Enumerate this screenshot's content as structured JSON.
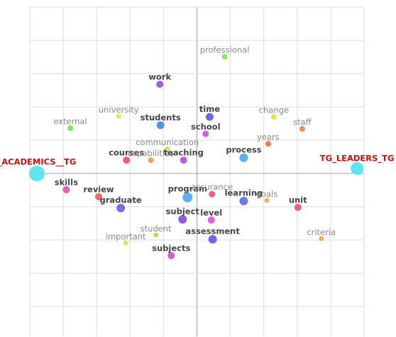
{
  "chart_data": {
    "type": "scatter",
    "xlim": [
      -5,
      5
    ],
    "ylim": [
      -4.9,
      5
    ],
    "xticks": [
      -5,
      -4,
      -3,
      -2,
      -1,
      0,
      1,
      2,
      3,
      4,
      5
    ],
    "yticks": [
      -4,
      -3,
      -2,
      -1,
      0,
      1,
      2,
      3,
      4,
      5
    ],
    "grid": true,
    "points": [
      {
        "label": "professional",
        "x": 0.83,
        "y": 3.51,
        "color": "#8ee85a",
        "size": 4,
        "label_color": "#888888"
      },
      {
        "label": "work",
        "x": -1.11,
        "y": 2.68,
        "color": "#a25be6",
        "size": 5,
        "label_color": "#444444"
      },
      {
        "label": "university",
        "x": -2.34,
        "y": 1.72,
        "color": "#e6e85a",
        "size": 3.5,
        "label_color": "#888888"
      },
      {
        "label": "external",
        "x": -3.79,
        "y": 1.36,
        "color": "#7ae85a",
        "size": 4,
        "label_color": "#888888"
      },
      {
        "label": "students",
        "x": -1.09,
        "y": 1.45,
        "color": "#5b8ee6",
        "size": 5.5,
        "label_color": "#444444"
      },
      {
        "label": "time",
        "x": 0.38,
        "y": 1.7,
        "color": "#6a6ae6",
        "size": 5.5,
        "label_color": "#444444"
      },
      {
        "label": "school",
        "x": 0.26,
        "y": 1.19,
        "color": "#d85be6",
        "size": 4.5,
        "label_color": "#444444"
      },
      {
        "label": "change",
        "x": 2.3,
        "y": 1.7,
        "color": "#e6e05a",
        "size": 4,
        "label_color": "#888888"
      },
      {
        "label": "staff",
        "x": 3.15,
        "y": 1.34,
        "color": "#f08a5a",
        "size": 4,
        "label_color": "#888888"
      },
      {
        "label": "years",
        "x": 2.13,
        "y": 0.89,
        "color": "#f07a5a",
        "size": 4,
        "label_color": "#888888"
      },
      {
        "label": "communication",
        "x": -0.89,
        "y": 0.74,
        "color": "#c8e85a",
        "size": 3.5,
        "label_color": "#888888"
      },
      {
        "label": "process",
        "x": 1.4,
        "y": 0.47,
        "color": "#5bb0f0",
        "size": 6,
        "label_color": "#444444"
      },
      {
        "label": "courses",
        "x": -2.11,
        "y": 0.4,
        "color": "#f05a7a",
        "size": 5,
        "label_color": "#444444"
      },
      {
        "label": "capabilities",
        "x": -1.38,
        "y": 0.4,
        "color": "#f0a05a",
        "size": 4,
        "label_color": "#888888"
      },
      {
        "label": "teaching",
        "x": -0.4,
        "y": 0.4,
        "color": "#c05be6",
        "size": 5,
        "label_color": "#444444"
      },
      {
        "label": "_ACADEMICS__TG",
        "x": -4.79,
        "y": 0,
        "color": "#5ee6f0",
        "size": 11,
        "label_color": "#cc1111"
      },
      {
        "label": "TG_LEADERS_TG",
        "x": 4.79,
        "y": 0.15,
        "color": "#5ee6f0",
        "size": 9,
        "label_color": "#cc1111"
      },
      {
        "label": "skills",
        "x": -3.91,
        "y": -0.49,
        "color": "#f05ab0",
        "size": 5,
        "label_color": "#444444"
      },
      {
        "label": "review",
        "x": -2.94,
        "y": -0.7,
        "color": "#f06a6a",
        "size": 5,
        "label_color": "#444444"
      },
      {
        "label": "graduate",
        "x": -2.28,
        "y": -1.04,
        "color": "#7a6ae6",
        "size": 6,
        "label_color": "#444444"
      },
      {
        "label": "program",
        "x": -0.28,
        "y": -0.72,
        "color": "#5bb0f0",
        "size": 7,
        "label_color": "#444444"
      },
      {
        "label": "assurance",
        "x": 0.45,
        "y": -0.62,
        "color": "#f05a9a",
        "size": 4.5,
        "label_color": "#888888"
      },
      {
        "label": "learning",
        "x": 1.4,
        "y": -0.83,
        "color": "#6a7ae6",
        "size": 6,
        "label_color": "#444444"
      },
      {
        "label": "goals",
        "x": 2.09,
        "y": -0.81,
        "color": "#f0b05a",
        "size": 3.5,
        "label_color": "#888888"
      },
      {
        "label": "unit",
        "x": 3.02,
        "y": -1.02,
        "color": "#f05a9a",
        "size": 5,
        "label_color": "#444444"
      },
      {
        "label": "subject",
        "x": -0.43,
        "y": -1.38,
        "color": "#8a5be6",
        "size": 6,
        "label_color": "#444444"
      },
      {
        "label": "level",
        "x": 0.43,
        "y": -1.4,
        "color": "#e65be6",
        "size": 5,
        "label_color": "#444444"
      },
      {
        "label": "student",
        "x": -1.23,
        "y": -1.85,
        "color": "#a8e85a",
        "size": 3.5,
        "label_color": "#888888"
      },
      {
        "label": "important",
        "x": -2.13,
        "y": -2.09,
        "color": "#d8e85a",
        "size": 3.5,
        "label_color": "#888888"
      },
      {
        "label": "assessment",
        "x": 0.47,
        "y": -1.98,
        "color": "#6a6ae6",
        "size": 6,
        "label_color": "#444444"
      },
      {
        "label": "criteria",
        "x": 3.72,
        "y": -1.96,
        "color": "#f0b05a",
        "size": 3.5,
        "label_color": "#888888"
      },
      {
        "label": "subjects",
        "x": -0.77,
        "y": -2.47,
        "color": "#e65bb8",
        "size": 5,
        "label_color": "#444444"
      }
    ]
  }
}
